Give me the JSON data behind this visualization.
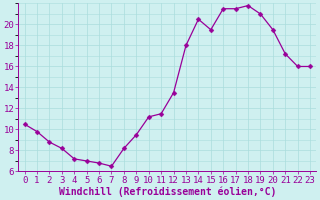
{
  "x": [
    0,
    1,
    2,
    3,
    4,
    5,
    6,
    7,
    8,
    9,
    10,
    11,
    12,
    13,
    14,
    15,
    16,
    17,
    18,
    19,
    20,
    21,
    22,
    23
  ],
  "y": [
    10.5,
    9.8,
    8.8,
    8.2,
    7.2,
    7.0,
    6.8,
    6.5,
    8.2,
    9.5,
    11.2,
    11.5,
    13.5,
    18.0,
    20.5,
    19.5,
    21.5,
    21.5,
    21.8,
    21.0,
    19.5,
    17.2,
    16.0,
    16.0
  ],
  "line_color": "#990099",
  "marker": "D",
  "marker_size": 2.5,
  "bg_color": "#cff0f0",
  "grid_color": "#aadddd",
  "tick_color": "#990099",
  "label_color": "#990099",
  "xlabel": "Windchill (Refroidissement éolien,°C)",
  "ylim": [
    6,
    22
  ],
  "xlim": [
    -0.5,
    23.5
  ],
  "yticks": [
    6,
    8,
    10,
    12,
    14,
    16,
    18,
    20
  ],
  "xticks": [
    0,
    1,
    2,
    3,
    4,
    5,
    6,
    7,
    8,
    9,
    10,
    11,
    12,
    13,
    14,
    15,
    16,
    17,
    18,
    19,
    20,
    21,
    22,
    23
  ],
  "font_size": 6.5,
  "xlabel_fontsize": 7.0
}
